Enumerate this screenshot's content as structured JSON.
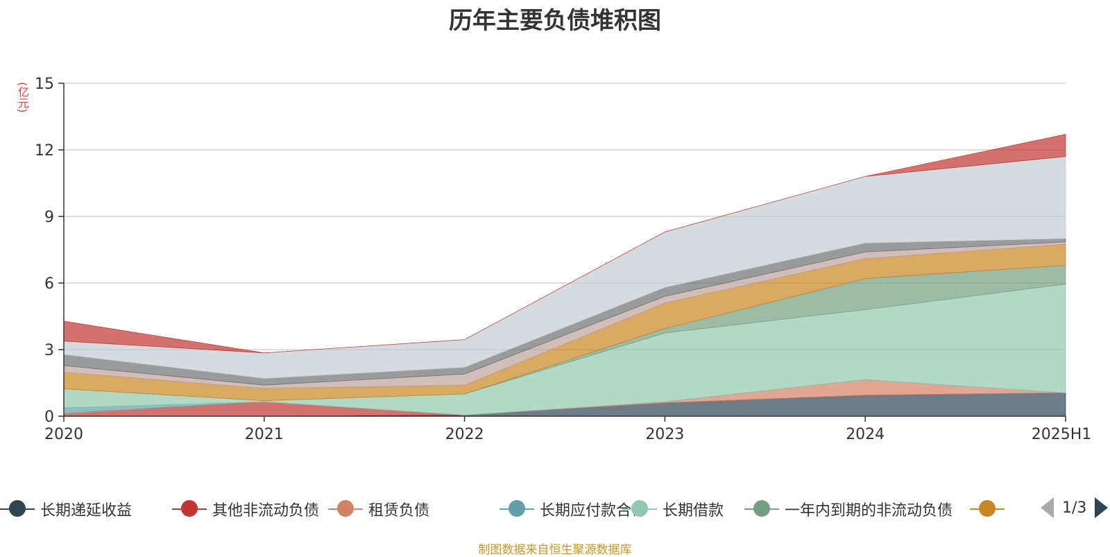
{
  "title": "历年主要负债堆积图",
  "unit_label": "(亿元)",
  "source_note": "制图数据来自恒生聚源数据库",
  "pager": {
    "text": "1/3"
  },
  "chart_data": {
    "type": "area",
    "stacked": true,
    "title": "历年主要负债堆积图",
    "ylabel": "(亿元)",
    "xlabel": "",
    "ylim": [
      0,
      15
    ],
    "yticks": [
      0,
      3,
      6,
      9,
      12,
      15
    ],
    "grid": true,
    "legend_position": "bottom",
    "categories": [
      "2020",
      "2021",
      "2022",
      "2023",
      "2024",
      "2025H1"
    ],
    "series": [
      {
        "name": "长期递延收益",
        "color": "#2f4554",
        "values": [
          0.0,
          0.0,
          0.05,
          0.6,
          0.95,
          1.05
        ],
        "legend": true
      },
      {
        "name": "其他非流动负债",
        "color": "#c23531",
        "values": [
          0.08,
          0.65,
          0.0,
          0.0,
          0.0,
          0.0
        ],
        "legend": true
      },
      {
        "name": "租赁负债",
        "color": "#d48265",
        "values": [
          0.05,
          0.0,
          0.0,
          0.05,
          0.7,
          0.0
        ],
        "legend": true
      },
      {
        "name": "长期应付款合计",
        "color": "#61a0a8",
        "values": [
          0.25,
          0.0,
          0.0,
          0.0,
          0.0,
          0.0
        ],
        "legend": true
      },
      {
        "name": "长期借款",
        "color": "#91c7ae",
        "values": [
          0.85,
          0.05,
          0.95,
          3.1,
          3.15,
          4.9
        ],
        "legend": true
      },
      {
        "name": "一年内到期的非流动负债",
        "color": "#749f83",
        "values": [
          0.0,
          0.0,
          0.0,
          0.2,
          1.4,
          0.85
        ],
        "legend": true
      },
      {
        "name": "",
        "color": "#ca8622",
        "values": [
          0.75,
          0.55,
          0.4,
          1.15,
          0.9,
          0.95
        ],
        "legend": true
      },
      {
        "name": "",
        "color": "#bda29a",
        "values": [
          0.3,
          0.15,
          0.5,
          0.3,
          0.3,
          0.1
        ],
        "legend": false
      },
      {
        "name": "",
        "color": "#6e7074",
        "values": [
          0.5,
          0.3,
          0.3,
          0.4,
          0.4,
          0.15
        ],
        "legend": false
      },
      {
        "name": "",
        "color": "#c4ccd3",
        "values": [
          0.6,
          1.15,
          1.25,
          2.5,
          3.0,
          3.7
        ],
        "legend": false
      },
      {
        "name": "",
        "color": "#c23531",
        "values": [
          0.9,
          0.0,
          0.0,
          0.0,
          0.0,
          1.0
        ],
        "legend": false
      }
    ]
  }
}
